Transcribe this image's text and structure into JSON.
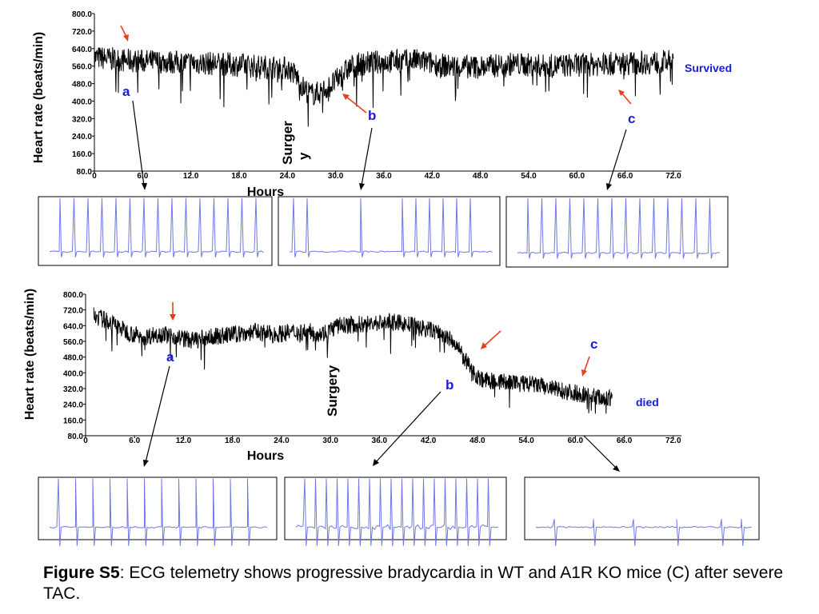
{
  "caption": {
    "figure_label": "Figure S5",
    "text": ": ECG telemetry shows progressive bradycardia in WT and A1R KO mice (C) after severe TAC."
  },
  "colors": {
    "trace": "#000000",
    "ecg": "#6f78e6",
    "arrow_red": "#e8401e",
    "marker_blue": "#1a1adc"
  },
  "chart_data": [
    {
      "type": "line",
      "panel": "top",
      "ylabel": "Heart rate (beats/min)",
      "xlabel": "Hours",
      "surgery_label": "Surger y",
      "outcome_label": "Survived",
      "markers": [
        "a",
        "b",
        "c"
      ],
      "x_ticks": [
        "0",
        "6.0",
        "12.0",
        "18.0",
        "24.0",
        "30.0",
        "36.0",
        "42.0",
        "48.0",
        "54.0",
        "60.0",
        "66.0",
        "72.0"
      ],
      "y_ticks": [
        "80.0",
        "160.0",
        "240.0",
        "320.0",
        "400.0",
        "480.0",
        "560.0",
        "640.0",
        "720.0",
        "800.0"
      ],
      "xlim": [
        0,
        73
      ],
      "ylim": [
        80,
        800
      ],
      "series": [
        {
          "x": [
            0,
            4,
            8,
            12,
            16,
            20,
            24,
            25,
            26,
            27,
            28,
            29,
            30,
            31,
            32,
            34,
            36,
            40,
            44,
            48,
            52,
            56,
            60,
            64,
            68,
            72
          ],
          "y": [
            600,
            585,
            580,
            575,
            570,
            560,
            550,
            520,
            460,
            430,
            440,
            460,
            490,
            530,
            560,
            575,
            580,
            585,
            560,
            555,
            570,
            560,
            565,
            570,
            575,
            580
          ]
        }
      ]
    },
    {
      "type": "line",
      "panel": "bottom",
      "ylabel": "Heart rate (beats/min)",
      "xlabel": "Hours",
      "surgery_label": "Surgery",
      "outcome_label": "died",
      "markers": [
        "a",
        "b",
        "c"
      ],
      "x_ticks": [
        "0",
        "6.0",
        "12.0",
        "18.0",
        "24.0",
        "30.0",
        "36.0",
        "42.0",
        "48.0",
        "54.0",
        "60.0",
        "66.0",
        "72.0"
      ],
      "y_ticks": [
        "80.0",
        "160.0",
        "240.0",
        "320.0",
        "400.0",
        "480.0",
        "560.0",
        "640.0",
        "720.0",
        "800.0"
      ],
      "xlim": [
        0,
        73
      ],
      "ylim": [
        80,
        800
      ],
      "series": [
        {
          "x": [
            1,
            3,
            5,
            7,
            9,
            11,
            13,
            15,
            17,
            19,
            21,
            23,
            25,
            27,
            29,
            31,
            33,
            35,
            37,
            39,
            41,
            43,
            45,
            46,
            47,
            48,
            49,
            51,
            53,
            55,
            57,
            59,
            61,
            63,
            64.5
          ],
          "y": [
            690,
            660,
            610,
            580,
            600,
            585,
            565,
            580,
            590,
            600,
            610,
            595,
            605,
            610,
            600,
            640,
            645,
            650,
            660,
            650,
            630,
            610,
            560,
            500,
            430,
            380,
            360,
            355,
            345,
            340,
            320,
            305,
            290,
            275,
            265
          ]
        }
      ]
    }
  ],
  "ecg_strips": [
    {
      "name": "top-a",
      "pattern": "regular"
    },
    {
      "name": "top-b",
      "pattern": "pauses"
    },
    {
      "name": "top-c",
      "pattern": "regular"
    },
    {
      "name": "bottom-a",
      "pattern": "regular-biphasic"
    },
    {
      "name": "bottom-b",
      "pattern": "noisy"
    },
    {
      "name": "bottom-c",
      "pattern": "sparse"
    }
  ]
}
